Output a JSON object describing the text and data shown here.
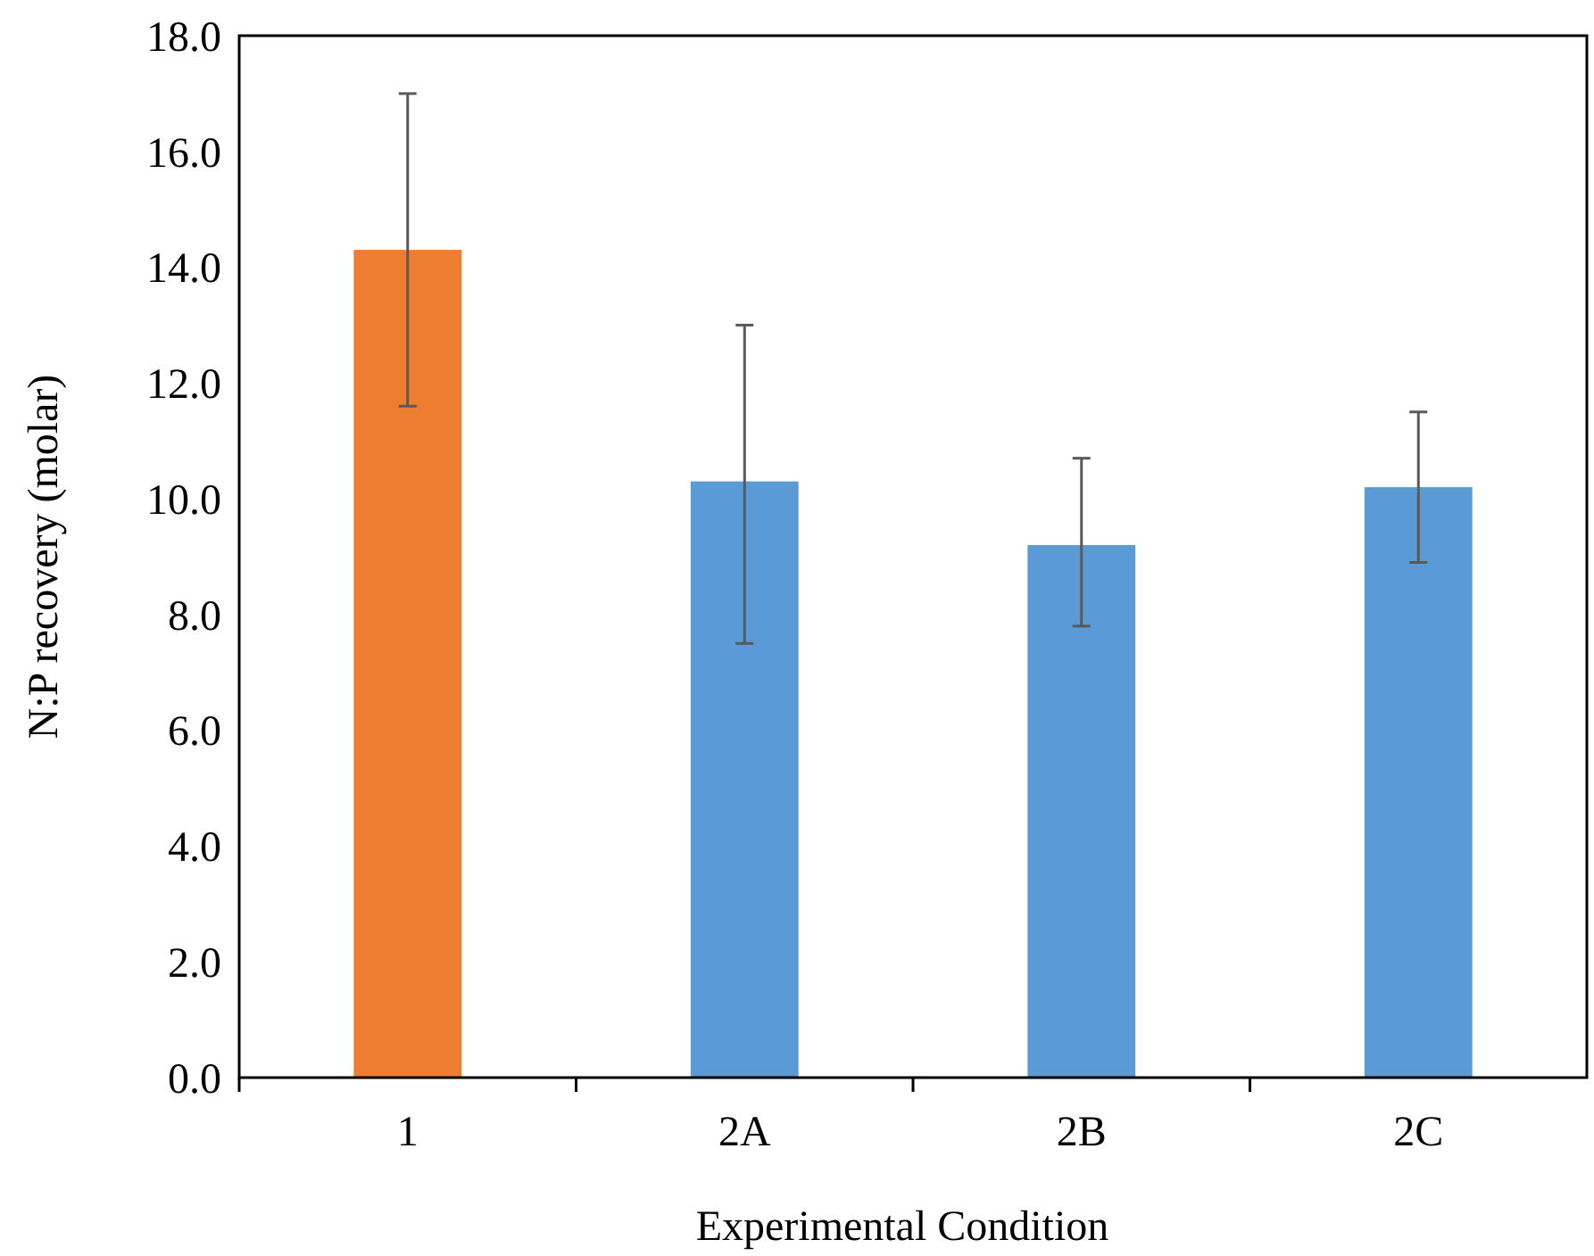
{
  "chart_data": {
    "type": "bar",
    "xlabel": "Experimental Condition",
    "ylabel": "N:P recovery (molar)",
    "categories": [
      "1",
      "2A",
      "2B",
      "2C"
    ],
    "values": [
      14.3,
      10.3,
      9.2,
      10.2
    ],
    "colors": [
      "#ed7d31",
      "#5b9bd5",
      "#5b9bd5",
      "#5b9bd5"
    ],
    "errors": [
      [
        11.6,
        17.0
      ],
      [
        7.5,
        13.0
      ],
      [
        7.8,
        10.7
      ],
      [
        8.9,
        11.5
      ]
    ],
    "ylim": [
      0,
      18
    ],
    "yticks": [
      {
        "value": 0,
        "label": "0.0"
      },
      {
        "value": 2,
        "label": "2.0"
      },
      {
        "value": 4,
        "label": "4.0"
      },
      {
        "value": 6,
        "label": "6.0"
      },
      {
        "value": 8,
        "label": "8.0"
      },
      {
        "value": 10,
        "label": "10.0"
      },
      {
        "value": 12,
        "label": "12.0"
      },
      {
        "value": 14,
        "label": "14.0"
      },
      {
        "value": 16,
        "label": "16.0"
      },
      {
        "value": 18,
        "label": "18.0"
      }
    ],
    "grid": false
  }
}
